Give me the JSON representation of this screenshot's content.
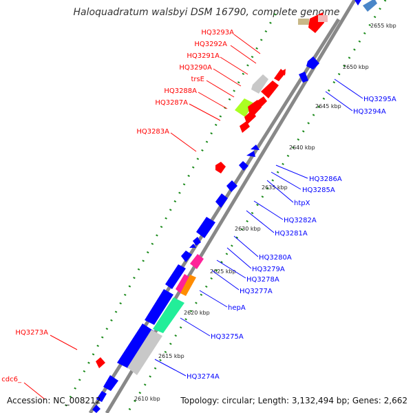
{
  "title": "Haloquadratum walsbyi DSM 16790, complete genome",
  "footer": {
    "accession": "Accession: NC_008212",
    "summary": "Topology: circular; Length: 3,132,494 bp; Genes: 2,662"
  },
  "colors": {
    "forward": "#ff0000",
    "reverse": "#0000ff",
    "tick": "#1a8a1a",
    "backbone": "#888888"
  },
  "scale_labels": [
    "2655 kbp",
    "2650 kbp",
    "2645 kbp",
    "2640 kbp",
    "2635 kbp",
    "2630 kbp",
    "2625 kbp",
    "2620 kbp",
    "2615 kbp",
    "2610 kbp"
  ],
  "forward_labels": [
    "HQ3293A",
    "HQ3292A",
    "HQ3291A",
    "HQ3290A",
    "trsE",
    "HQ3288A",
    "HQ3287A",
    "HQ3283A",
    "HQ3273A",
    "cdc6_"
  ],
  "reverse_labels": [
    "HQ3295A",
    "HQ3294A",
    "HQ3286A",
    "HQ3285A",
    "htpX",
    "HQ3282A",
    "HQ3281A",
    "HQ3280A",
    "HQ3279A",
    "HQ3278A",
    "HQ3277A",
    "hepA",
    "HQ3275A",
    "HQ3274A"
  ]
}
